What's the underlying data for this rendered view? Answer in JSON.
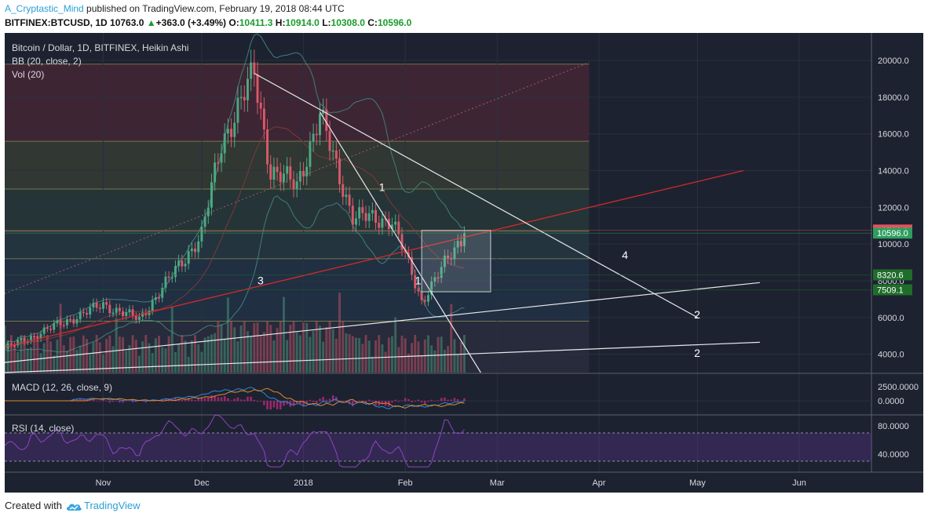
{
  "header": {
    "author": "A_Cryptastic_Mind",
    "published_text": " published on TradingView.com, February 19, 2018 08:44 UTC",
    "symbol": "BITFINEX:BTCUSD, 1D",
    "last": "10763.0",
    "change_arrow": "▲",
    "change": "+363.0 (+3.49%)",
    "o_label": "O:",
    "o_value": "10411.3",
    "h_label": "H:",
    "h_value": "10914.0",
    "l_label": "L:",
    "l_value": "10308.0",
    "c_label": "C:",
    "c_value": "10596.0"
  },
  "overlay": {
    "title": "Bitcoin / Dollar, 1D, BITFINEX, Heikin Ashi",
    "bb": "BB (20, close, 2)",
    "vol": "Vol (20)",
    "macd": "MACD (12, 26, close, 9)",
    "rsi": "RSI (14, close)"
  },
  "footer": {
    "created_with": "Created with",
    "brand": "TradingView"
  },
  "colors": {
    "bg": "#1d2230",
    "up": "#4ea882",
    "down": "#d9596a",
    "grid": "#2a3040",
    "axis_text": "#d6d8de",
    "white_line": "#e8e8ec",
    "red_line": "#d42a2a",
    "bb_line": "#3f7f7a",
    "macd": "#2a8ad6",
    "signal": "#e08a2a",
    "rsi": "#8e44c8"
  },
  "chart_data": [
    {
      "type": "candlestick",
      "title": "Bitcoin / Dollar, 1D, BITFINEX, Heikin Ashi",
      "y_axis_ticks": [
        4000,
        6000,
        8000,
        10000,
        12000,
        14000,
        16000,
        18000,
        20000
      ],
      "y_tick_labels": [
        "4000.0",
        "6000.0",
        "8000.0",
        "10000.0",
        "12000.0",
        "14000.0",
        "16000.0",
        "18000.0",
        "20000.0"
      ],
      "x_tick_labels": [
        "Nov",
        "Dec",
        "2018",
        "Feb",
        "Mar",
        "Apr",
        "May",
        "Jun"
      ],
      "x_ticks": [
        "2017-11-01",
        "2017-12-01",
        "2018-01-01",
        "2018-02-01",
        "2018-03-01",
        "2018-04-01",
        "2018-05-01",
        "2018-06-01"
      ],
      "x_range": [
        "2017-10-02",
        "2018-06-23"
      ],
      "ylim": [
        3000,
        21500
      ],
      "price_labels": [
        {
          "value": 10763.0,
          "text": "10763.0",
          "color": "#e84f5f"
        },
        {
          "value": 10596.0,
          "text": "10596.0",
          "color": "#2e9e5e"
        },
        {
          "value": 8320.6,
          "text": "8320.6",
          "color": "#1f6d2a"
        },
        {
          "value": 7509.1,
          "text": "7509.1",
          "color": "#1f6d2a"
        }
      ],
      "key_points": [
        {
          "date": "2017-10-02",
          "close": 4300
        },
        {
          "date": "2017-11-01",
          "close": 6700
        },
        {
          "date": "2017-11-12",
          "close": 5900
        },
        {
          "date": "2017-12-01",
          "close": 10500
        },
        {
          "date": "2017-12-07",
          "close": 15500
        },
        {
          "date": "2017-12-17",
          "close": 19300
        },
        {
          "date": "2017-12-22",
          "close": 14000
        },
        {
          "date": "2017-12-30",
          "close": 13200
        },
        {
          "date": "2018-01-06",
          "close": 17000
        },
        {
          "date": "2018-01-16",
          "close": 11500
        },
        {
          "date": "2018-01-28",
          "close": 11300
        },
        {
          "date": "2018-02-06",
          "close": 6900
        },
        {
          "date": "2018-02-19",
          "close": 10596
        }
      ],
      "annotations": [
        {
          "text": "1",
          "date": "2018-01-24",
          "price": 12900
        },
        {
          "text": "1",
          "date": "2018-02-04",
          "price": 7800
        },
        {
          "text": "3",
          "date": "2017-12-18",
          "price": 7800
        },
        {
          "text": "4",
          "date": "2018-04-08",
          "price": 9200
        },
        {
          "text": "2",
          "date": "2018-04-30",
          "price": 5950
        },
        {
          "text": "2",
          "date": "2018-04-30",
          "price": 3850
        }
      ]
    },
    {
      "type": "line",
      "title": "MACD (12, 26, close, 9)",
      "y_tick_labels": [
        "2500.0000",
        "0.0000"
      ],
      "y_ticks": [
        2500,
        0
      ]
    },
    {
      "type": "line",
      "title": "RSI (14, close)",
      "y_tick_labels": [
        "80.0000",
        "40.0000"
      ],
      "y_ticks": [
        80,
        40
      ]
    }
  ]
}
